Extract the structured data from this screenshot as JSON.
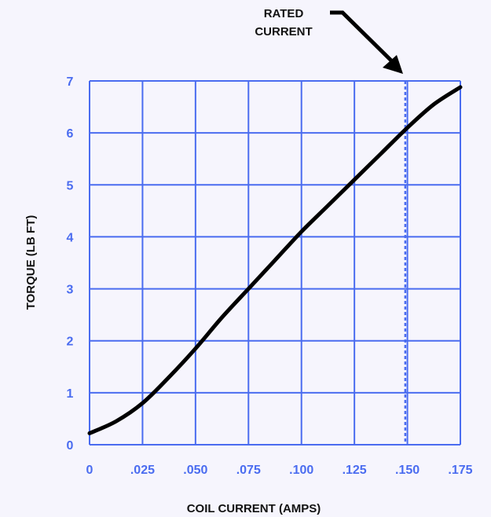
{
  "chart_data": {
    "type": "line",
    "xlabel": "COIL CURRENT (AMPS)",
    "ylabel": "TORQUE (LB FT)",
    "xlim": [
      0,
      0.175
    ],
    "ylim": [
      0,
      7
    ],
    "grid": true,
    "x_ticks": [
      0,
      0.025,
      0.05,
      0.075,
      0.1,
      0.125,
      0.15,
      0.175
    ],
    "x_tick_labels": [
      "0",
      ".025",
      ".050",
      ".075",
      ".100",
      ".125",
      ".150",
      ".175"
    ],
    "y_ticks": [
      0,
      1,
      2,
      3,
      4,
      5,
      6,
      7
    ],
    "y_tick_labels": [
      "0",
      "1",
      "2",
      "3",
      "4",
      "5",
      "6",
      "7"
    ],
    "series": [
      {
        "x": [
          0,
          0.0125,
          0.025,
          0.0375,
          0.05,
          0.0625,
          0.075,
          0.0875,
          0.1,
          0.1125,
          0.125,
          0.1375,
          0.15,
          0.1625,
          0.175
        ],
        "y": [
          0.22,
          0.45,
          0.8,
          1.3,
          1.85,
          2.45,
          3.0,
          3.55,
          4.1,
          4.6,
          5.1,
          5.6,
          6.1,
          6.55,
          6.88
        ]
      }
    ],
    "annotations": [
      {
        "text_lines": [
          "RATED",
          "CURRENT"
        ],
        "x": 0.149,
        "style": "dashed-vertical-line"
      }
    ],
    "colors": {
      "grid": "#4a6cf0",
      "tick_labels": "#4a6cf0",
      "line": "#000000",
      "reference_line": "#4a6cf0",
      "background": "#f6f5fd"
    }
  }
}
